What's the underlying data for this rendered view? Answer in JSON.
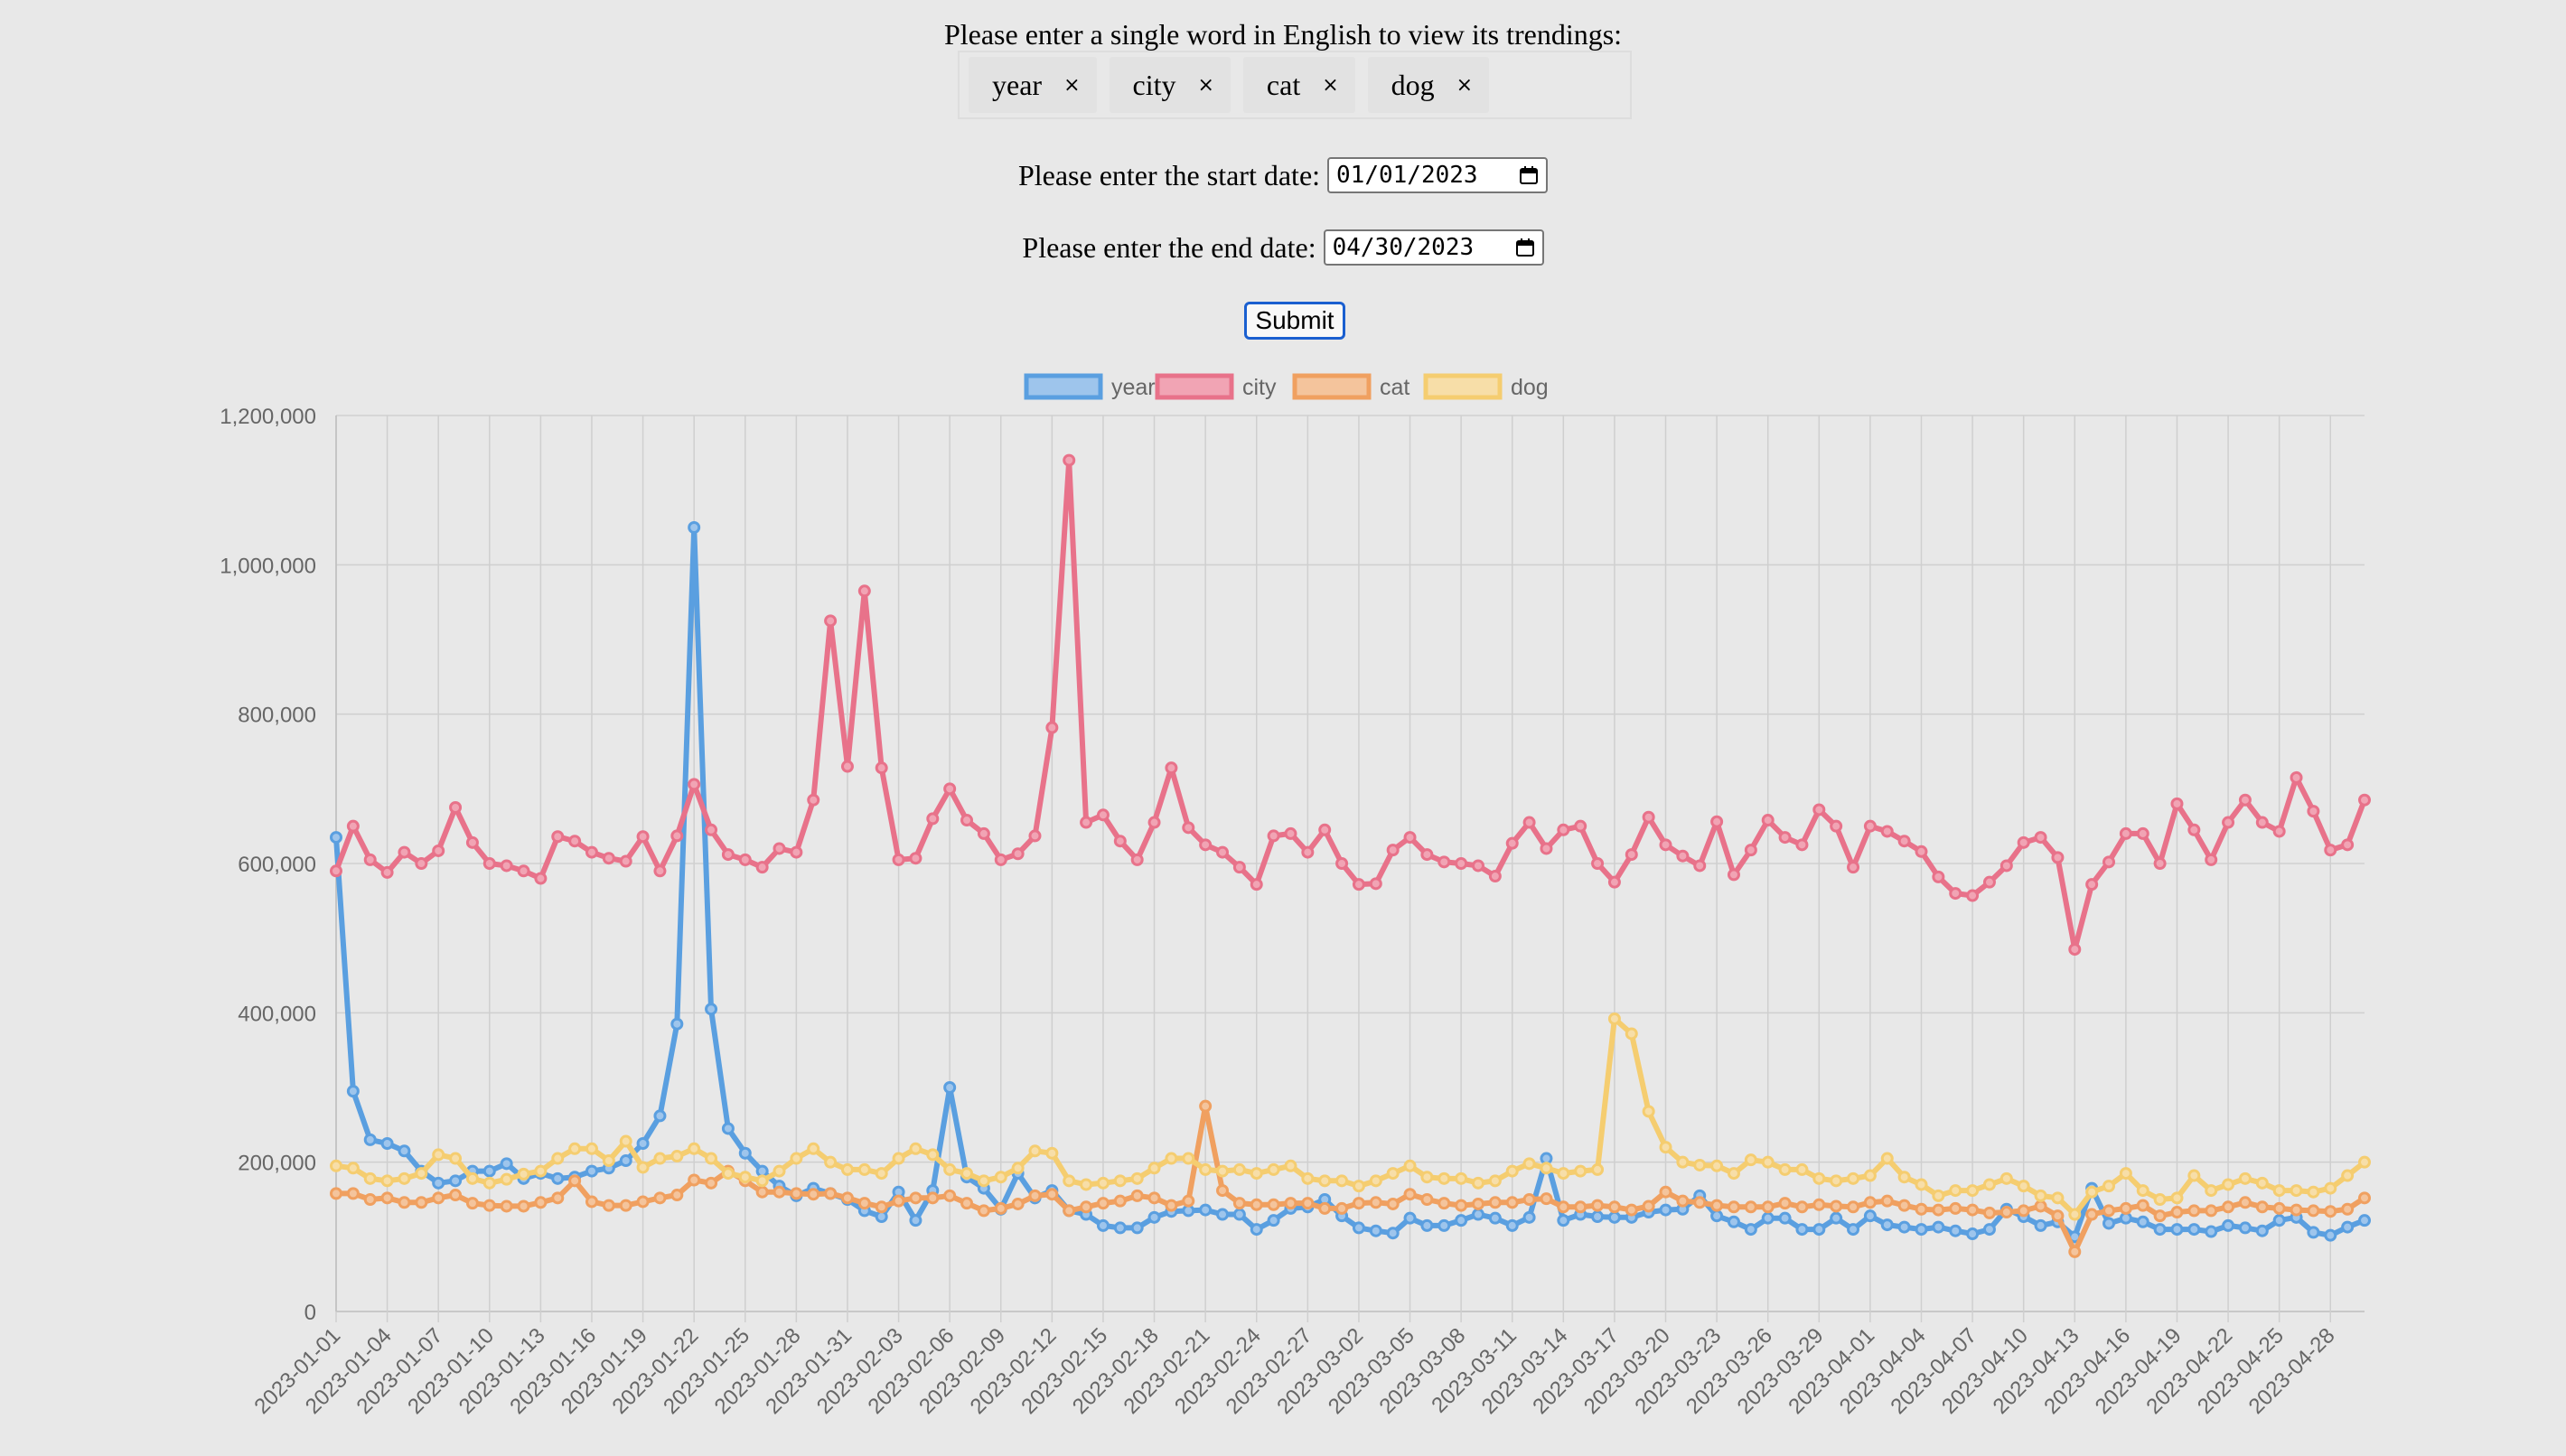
{
  "form": {
    "word_prompt": "Please enter a single word in English to view its trendings:",
    "words": [
      {
        "label": "year",
        "remove": "×"
      },
      {
        "label": "city",
        "remove": "×"
      },
      {
        "label": "cat",
        "remove": "×"
      },
      {
        "label": "dog",
        "remove": "×"
      }
    ],
    "start_label": "Please enter the start date:",
    "start_value": "01/01/2023",
    "end_label": "Please enter the end date:",
    "end_value": "04/30/2023",
    "submit_label": "Submit"
  },
  "chart_data": {
    "type": "line",
    "x_start": "2023-01-01",
    "x_end": "2023-04-30",
    "tick_labels": [
      "2023-01-01",
      "2023-01-04",
      "2023-01-07",
      "2023-01-10",
      "2023-01-13",
      "2023-01-16",
      "2023-01-19",
      "2023-01-22",
      "2023-01-25",
      "2023-01-28",
      "2023-01-31",
      "2023-02-03",
      "2023-02-06",
      "2023-02-09",
      "2023-02-12",
      "2023-02-15",
      "2023-02-18",
      "2023-02-21",
      "2023-02-24",
      "2023-02-27",
      "2023-03-02",
      "2023-03-05",
      "2023-03-08",
      "2023-03-11",
      "2023-03-14",
      "2023-03-17",
      "2023-03-20",
      "2023-03-23",
      "2023-03-26",
      "2023-03-29",
      "2023-04-01",
      "2023-04-04",
      "2023-04-07",
      "2023-04-10",
      "2023-04-13",
      "2023-04-16",
      "2023-04-19",
      "2023-04-22",
      "2023-04-25",
      "2023-04-28"
    ],
    "y_ticks": [
      "0",
      "200,000",
      "400,000",
      "600,000",
      "800,000",
      "1,000,000",
      "1,200,000"
    ],
    "ylim": [
      0,
      1200000
    ],
    "grid": true,
    "legend_position": "top",
    "series": [
      {
        "name": "year",
        "color": "#5a9fe0",
        "fill": "#9ec5ec",
        "values": [
          635000,
          295000,
          230000,
          225000,
          215000,
          188000,
          172000,
          175000,
          188000,
          188000,
          198000,
          178000,
          185000,
          178000,
          180000,
          188000,
          192000,
          202000,
          225000,
          262000,
          385000,
          1050000,
          405000,
          245000,
          212000,
          188000,
          168000,
          155000,
          165000,
          158000,
          150000,
          135000,
          127000,
          160000,
          122000,
          162000,
          300000,
          180000,
          165000,
          137000,
          185000,
          152000,
          162000,
          135000,
          130000,
          115000,
          112000,
          112000,
          126000,
          134000,
          135000,
          136000,
          130000,
          130000,
          110000,
          122000,
          138000,
          140000,
          150000,
          128000,
          112000,
          108000,
          105000,
          125000,
          115000,
          115000,
          122000,
          130000,
          125000,
          115000,
          126000,
          205000,
          122000,
          130000,
          127000,
          126000,
          126000,
          133000,
          136000,
          137000,
          155000,
          128000,
          120000,
          110000,
          125000,
          125000,
          110000,
          110000,
          125000,
          110000,
          128000,
          116000,
          113000,
          110000,
          113000,
          108000,
          104000,
          110000,
          137000,
          127000,
          115000,
          120000,
          100000,
          165000,
          118000,
          125000,
          120000,
          110000,
          110000,
          110000,
          107000,
          115000,
          112000,
          108000,
          122000,
          126000,
          106000,
          102000,
          113000,
          122000
        ]
      },
      {
        "name": "city",
        "color": "#e8728a",
        "fill": "#f1a4b4",
        "values": [
          590000,
          650000,
          605000,
          588000,
          615000,
          600000,
          617000,
          675000,
          628000,
          600000,
          597000,
          590000,
          580000,
          636000,
          630000,
          615000,
          607000,
          603000,
          636000,
          590000,
          637000,
          706000,
          645000,
          612000,
          605000,
          595000,
          620000,
          615000,
          685000,
          925000,
          730000,
          965000,
          728000,
          605000,
          607000,
          660000,
          700000,
          658000,
          640000,
          605000,
          613000,
          637000,
          782000,
          1140000,
          655000,
          665000,
          630000,
          605000,
          655000,
          728000,
          648000,
          625000,
          615000,
          595000,
          572000,
          637000,
          640000,
          615000,
          645000,
          600000,
          572000,
          573000,
          618000,
          635000,
          612000,
          602000,
          600000,
          597000,
          583000,
          627000,
          655000,
          620000,
          645000,
          650000,
          600000,
          575000,
          612000,
          662000,
          625000,
          610000,
          597000,
          656000,
          585000,
          618000,
          658000,
          635000,
          625000,
          672000,
          650000,
          595000,
          650000,
          643000,
          630000,
          616000,
          582000,
          560000,
          557000,
          575000,
          597000,
          628000,
          635000,
          608000,
          485000,
          572000,
          602000,
          640000,
          640000,
          600000,
          680000,
          645000,
          605000,
          655000,
          685000,
          655000,
          643000,
          715000,
          670000,
          618000,
          625000,
          685000
        ]
      },
      {
        "name": "cat",
        "color": "#f0a060",
        "fill": "#f4c49c",
        "values": [
          158000,
          158000,
          150000,
          152000,
          146000,
          146000,
          152000,
          156000,
          145000,
          142000,
          141000,
          141000,
          146000,
          152000,
          175000,
          147000,
          142000,
          142000,
          147000,
          152000,
          156000,
          176000,
          172000,
          188000,
          175000,
          160000,
          160000,
          158000,
          157000,
          158000,
          152000,
          145000,
          140000,
          148000,
          152000,
          152000,
          155000,
          145000,
          135000,
          138000,
          144000,
          155000,
          157000,
          135000,
          140000,
          145000,
          148000,
          155000,
          152000,
          142000,
          148000,
          275000,
          162000,
          145000,
          143000,
          143000,
          145000,
          145000,
          138000,
          138000,
          145000,
          146000,
          144000,
          157000,
          150000,
          145000,
          142000,
          144000,
          146000,
          146000,
          150000,
          151000,
          140000,
          140000,
          142000,
          140000,
          136000,
          141000,
          160000,
          148000,
          146000,
          142000,
          140000,
          140000,
          140000,
          145000,
          140000,
          143000,
          141000,
          140000,
          146000,
          148000,
          142000,
          137000,
          136000,
          138000,
          136000,
          132000,
          133000,
          135000,
          141000,
          128000,
          80000,
          130000,
          135000,
          138000,
          142000,
          128000,
          133000,
          135000,
          135000,
          140000,
          146000,
          140000,
          138000,
          136000,
          135000,
          134000,
          137000,
          152000
        ]
      },
      {
        "name": "dog",
        "color": "#f5cd70",
        "fill": "#f7dea8",
        "values": [
          195000,
          192000,
          178000,
          175000,
          178000,
          185000,
          210000,
          205000,
          178000,
          172000,
          177000,
          184000,
          188000,
          205000,
          218000,
          218000,
          202000,
          228000,
          193000,
          205000,
          208000,
          218000,
          205000,
          185000,
          180000,
          175000,
          188000,
          205000,
          218000,
          200000,
          190000,
          190000,
          185000,
          205000,
          218000,
          210000,
          190000,
          185000,
          175000,
          180000,
          192000,
          215000,
          212000,
          175000,
          170000,
          172000,
          175000,
          178000,
          192000,
          205000,
          205000,
          190000,
          188000,
          190000,
          185000,
          190000,
          195000,
          178000,
          175000,
          175000,
          168000,
          175000,
          185000,
          195000,
          180000,
          178000,
          178000,
          172000,
          175000,
          188000,
          198000,
          192000,
          185000,
          188000,
          190000,
          392000,
          372000,
          268000,
          220000,
          200000,
          196000,
          195000,
          185000,
          203000,
          200000,
          190000,
          190000,
          178000,
          175000,
          178000,
          182000,
          205000,
          180000,
          170000,
          155000,
          162000,
          162000,
          170000,
          178000,
          168000,
          155000,
          152000,
          130000,
          160000,
          168000,
          185000,
          162000,
          150000,
          152000,
          182000,
          162000,
          170000,
          178000,
          172000,
          162000,
          162000,
          160000,
          165000,
          182000,
          200000
        ]
      }
    ]
  }
}
